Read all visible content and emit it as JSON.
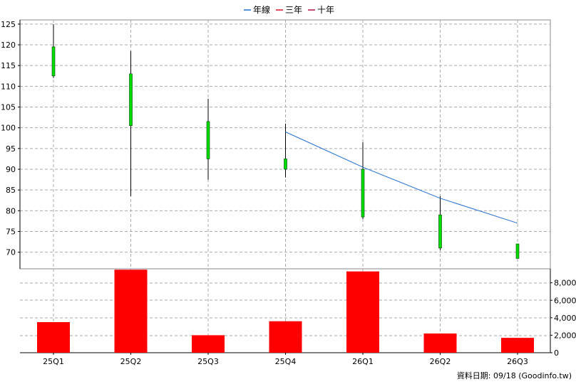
{
  "legend": [
    {
      "label": "年線",
      "color": "#1f6fd1"
    },
    {
      "label": "三年",
      "color": "#e0102a"
    },
    {
      "label": "十年",
      "color": "#b0104a"
    }
  ],
  "footer": {
    "label": "資料日期: 09/18",
    "source": "(Goodinfo.tw)"
  },
  "chart_data": [
    {
      "type": "candlestick",
      "categories": [
        "25Q1",
        "25Q2",
        "25Q3",
        "25Q4",
        "26Q1",
        "26Q2",
        "26Q3"
      ],
      "ohlc": [
        {
          "open": 112.5,
          "high": 125,
          "low": 112,
          "close": 119.5
        },
        {
          "open": 100.5,
          "high": 118.5,
          "low": 83.5,
          "close": 113
        },
        {
          "open": 92.5,
          "high": 107,
          "low": 87.5,
          "close": 101.5
        },
        {
          "open": 90,
          "high": 101,
          "low": 88,
          "close": 92.5
        },
        {
          "open": 78.5,
          "high": 96.5,
          "low": 78,
          "close": 90
        },
        {
          "open": 71,
          "high": 83.5,
          "low": 70.5,
          "close": 79
        },
        {
          "open": 68.5,
          "high": 72,
          "low": 68.5,
          "close": 72
        }
      ],
      "ylim": [
        66,
        126
      ],
      "yticks": [
        70,
        75,
        80,
        85,
        90,
        95,
        100,
        105,
        110,
        115,
        120,
        125
      ],
      "candle_color": "#00dd00",
      "series": [
        {
          "name": "年線",
          "x": [
            "25Q4",
            "26Q1",
            "26Q2",
            "26Q3"
          ],
          "values": [
            99,
            90.5,
            83,
            77
          ],
          "color": "#1f6fd1"
        }
      ],
      "grid": true
    },
    {
      "type": "bar",
      "categories": [
        "25Q1",
        "25Q2",
        "25Q3",
        "25Q4",
        "26Q1",
        "26Q2",
        "26Q3"
      ],
      "values": [
        3500,
        9500,
        2000,
        3600,
        9300,
        2200,
        1700
      ],
      "color": "#ff0000",
      "ylim": [
        0,
        9600
      ],
      "yticks": [
        0,
        2000,
        4000,
        6000,
        8000
      ],
      "ytick_labels": [
        "0",
        "2,000",
        "4,000",
        "6,000",
        "8,000"
      ],
      "grid": true
    }
  ]
}
